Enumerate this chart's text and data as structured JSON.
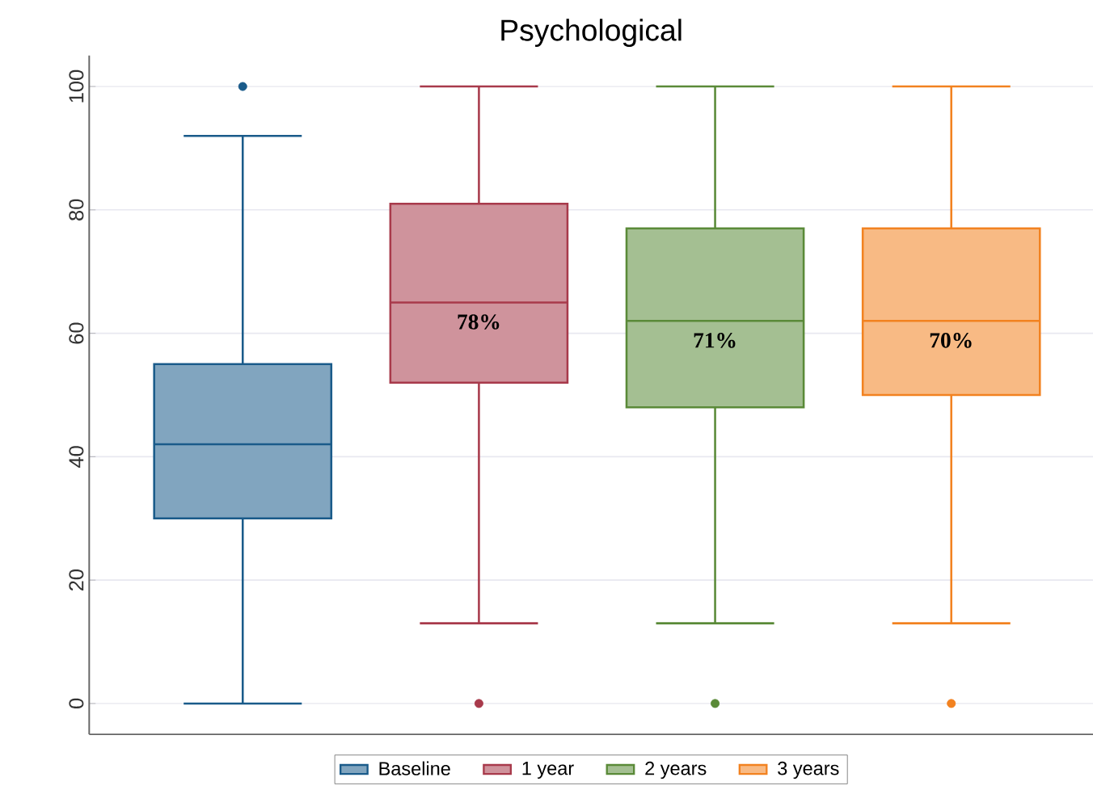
{
  "chart_data": {
    "type": "box",
    "title": "Psychological",
    "categories": [
      null,
      null,
      null,
      null
    ],
    "series": [
      {
        "name": "Baseline",
        "color": "#1a5b8a",
        "boxes": [
          {
            "low": 0,
            "q1": 30,
            "median": 42,
            "q3": 55,
            "high": 92,
            "outliers": [
              100
            ]
          },
          null,
          null,
          null
        ]
      },
      {
        "name": "1 year",
        "color": "#a83a4b",
        "boxes": [
          null,
          {
            "low": 13,
            "q1": 52,
            "median": 65,
            "q3": 81,
            "high": 100,
            "outliers": [
              0
            ]
          },
          null,
          null
        ]
      },
      {
        "name": "2 years",
        "color": "#5a8a38",
        "boxes": [
          null,
          null,
          {
            "low": 13,
            "q1": 48,
            "median": 62,
            "q3": 77,
            "high": 100,
            "outliers": [
              0
            ]
          },
          null
        ]
      },
      {
        "name": "3 years",
        "color": "#f28220",
        "boxes": [
          null,
          null,
          null,
          {
            "low": 13,
            "q1": 50,
            "median": 62,
            "q3": 77,
            "high": 100,
            "outliers": [
              0
            ]
          }
        ]
      }
    ],
    "annotations": [
      "78%",
      "71%",
      "70%"
    ],
    "ylim": [
      -5,
      105
    ],
    "yticks": [
      0,
      20,
      40,
      60,
      80,
      100
    ],
    "grid": "y",
    "legend": "bottom"
  }
}
